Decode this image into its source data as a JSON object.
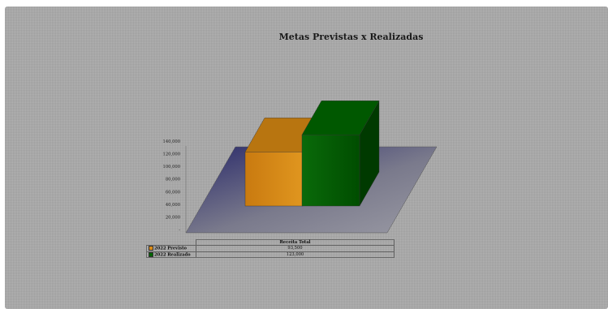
{
  "chart_data": {
    "type": "bar",
    "title": "Metas Previstas x Realizadas",
    "categories": [
      "Receita Total"
    ],
    "series": [
      {
        "name": "2022 Previsto",
        "values": [
          93500
        ],
        "color": "#d98a17",
        "table_value": "93,500"
      },
      {
        "name": "2022 Realizado",
        "values": [
          123000
        ],
        "color": "#006400",
        "table_value": "123,000"
      }
    ],
    "y_ticks": [
      "140,000",
      "120,000",
      "100,000",
      "80,000",
      "60,000",
      "40,000",
      "20,000",
      "-"
    ],
    "ylim": [
      0,
      140000
    ],
    "floor_color": "#6e6e7e",
    "legend": "data-table"
  }
}
